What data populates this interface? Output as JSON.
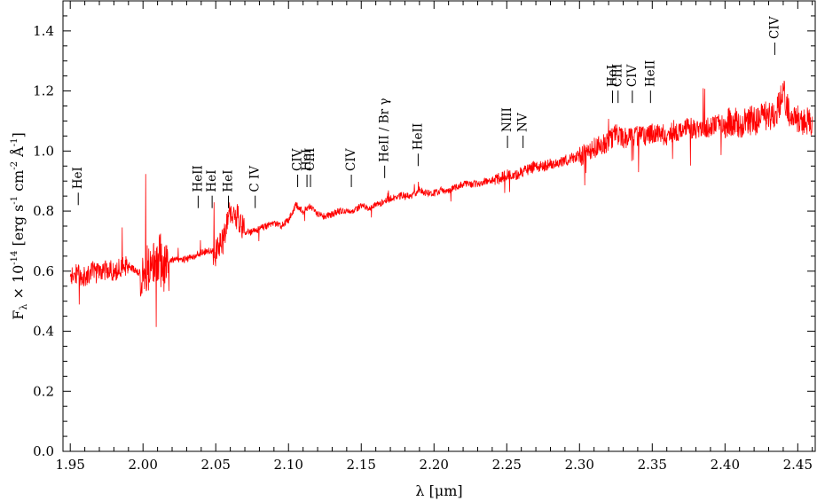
{
  "colors": {
    "spectrum": "#ff0000",
    "axes": "#000000",
    "background": "#ffffff"
  },
  "chart_data": {
    "type": "line",
    "xlabel": "λ [μm]",
    "ylabel": "F_λ × 10^-14 [erg s^-1 cm^-2 Å^-1]",
    "ylabel_parts": {
      "f": "F",
      "f_sub": "λ",
      "times": " × 10",
      "exp": "-14",
      "bracket_open": " [erg s",
      "s_exp": "-1",
      "cm": " cm",
      "cm_exp": "-2",
      "angstrom": " Å",
      "a_exp": "-1",
      "bracket_close": "]"
    },
    "xlim": [
      1.945,
      2.462
    ],
    "ylim": [
      0.0,
      1.5
    ],
    "x_ticks": [
      "1.95",
      "2.00",
      "2.05",
      "2.10",
      "2.15",
      "2.20",
      "2.25",
      "2.30",
      "2.35",
      "2.40",
      "2.45"
    ],
    "y_ticks": [
      "0.0",
      "0.2",
      "0.4",
      "0.6",
      "0.8",
      "1.0",
      "1.2",
      "1.4"
    ],
    "grid": false,
    "legend": "none",
    "series": [
      {
        "color": "#ff0000",
        "x": [
          1.95,
          1.955,
          1.96,
          1.965,
          1.97,
          1.975,
          1.98,
          1.985,
          1.99,
          1.995,
          2.0,
          2.005,
          2.01,
          2.015,
          2.02,
          2.025,
          2.03,
          2.035,
          2.04,
          2.045,
          2.05,
          2.055,
          2.06,
          2.065,
          2.07,
          2.075,
          2.08,
          2.085,
          2.09,
          2.095,
          2.1,
          2.105,
          2.11,
          2.115,
          2.12,
          2.125,
          2.13,
          2.135,
          2.14,
          2.145,
          2.15,
          2.155,
          2.16,
          2.165,
          2.17,
          2.175,
          2.18,
          2.185,
          2.19,
          2.195,
          2.2,
          2.205,
          2.21,
          2.215,
          2.22,
          2.225,
          2.23,
          2.235,
          2.24,
          2.245,
          2.25,
          2.255,
          2.26,
          2.265,
          2.27,
          2.275,
          2.28,
          2.285,
          2.29,
          2.295,
          2.3,
          2.305,
          2.31,
          2.315,
          2.32,
          2.325,
          2.33,
          2.335,
          2.34,
          2.345,
          2.35,
          2.355,
          2.36,
          2.365,
          2.37,
          2.375,
          2.38,
          2.385,
          2.39,
          2.395,
          2.4,
          2.405,
          2.41,
          2.415,
          2.42,
          2.425,
          2.43,
          2.435,
          2.44,
          2.445,
          2.45,
          2.455,
          2.46
        ],
        "y": [
          0.58,
          0.59,
          0.58,
          0.6,
          0.59,
          0.61,
          0.6,
          0.61,
          0.62,
          0.6,
          0.59,
          0.61,
          0.66,
          0.6,
          0.64,
          0.64,
          0.64,
          0.65,
          0.66,
          0.67,
          0.66,
          0.7,
          0.8,
          0.78,
          0.73,
          0.73,
          0.74,
          0.75,
          0.76,
          0.75,
          0.77,
          0.82,
          0.8,
          0.82,
          0.79,
          0.78,
          0.79,
          0.8,
          0.8,
          0.8,
          0.82,
          0.81,
          0.82,
          0.83,
          0.84,
          0.85,
          0.85,
          0.85,
          0.87,
          0.86,
          0.86,
          0.87,
          0.87,
          0.88,
          0.89,
          0.89,
          0.89,
          0.9,
          0.9,
          0.91,
          0.92,
          0.92,
          0.93,
          0.94,
          0.95,
          0.95,
          0.96,
          0.96,
          0.97,
          0.98,
          0.98,
          1.0,
          1.01,
          1.02,
          1.03,
          1.06,
          1.04,
          1.05,
          1.05,
          1.05,
          1.06,
          1.06,
          1.05,
          1.07,
          1.06,
          1.08,
          1.07,
          1.07,
          1.08,
          1.09,
          1.09,
          1.1,
          1.09,
          1.1,
          1.1,
          1.11,
          1.12,
          1.12,
          1.2,
          1.1,
          1.11,
          1.1,
          1.09
        ]
      }
    ],
    "annotations": [
      {
        "label": "HeI",
        "x": 1.9555,
        "y": 0.82
      },
      {
        "label": "HeII",
        "x": 2.0379,
        "y": 0.81
      },
      {
        "label": "HeI",
        "x": 2.0475,
        "y": 0.81
      },
      {
        "label": "HeI",
        "x": 2.0587,
        "y": 0.81
      },
      {
        "label": "C IV",
        "x": 2.0771,
        "y": 0.81
      },
      {
        "label": "CIV",
        "x": 2.1063,
        "y": 0.88
      },
      {
        "label": "CIII",
        "x": 2.1151,
        "y": 0.88
      },
      {
        "label": "HeI",
        "x": 2.1127,
        "y": 0.88
      },
      {
        "label": "CIV",
        "x": 2.1432,
        "y": 0.88
      },
      {
        "label": "HeII / Br γ",
        "x": 2.1661,
        "y": 0.91
      },
      {
        "label": "HeII",
        "x": 2.1891,
        "y": 0.95
      },
      {
        "label": "NIII",
        "x": 2.2505,
        "y": 1.01
      },
      {
        "label": "NV",
        "x": 2.2612,
        "y": 1.01
      },
      {
        "label": "HeI",
        "x": 2.3227,
        "y": 1.16
      },
      {
        "label": "CIII",
        "x": 2.3265,
        "y": 1.16
      },
      {
        "label": "CIV",
        "x": 2.3363,
        "y": 1.16
      },
      {
        "label": "HeII",
        "x": 2.3488,
        "y": 1.16
      },
      {
        "label": "CIV",
        "x": 2.4342,
        "y": 1.32
      }
    ]
  }
}
